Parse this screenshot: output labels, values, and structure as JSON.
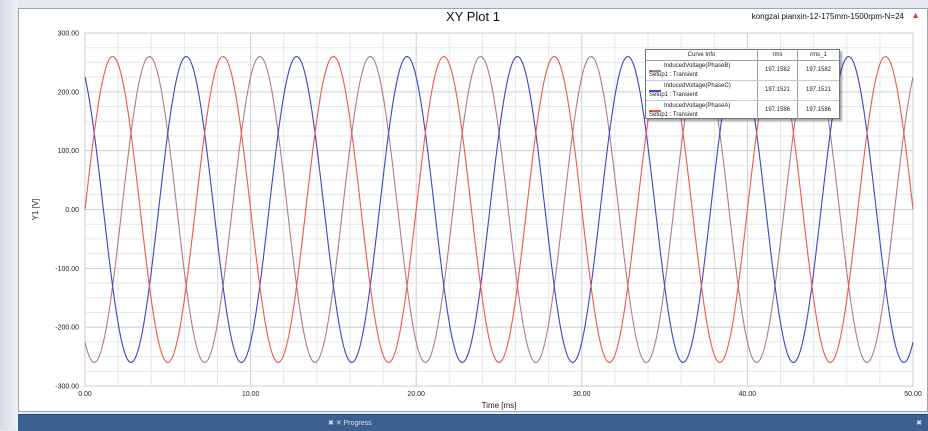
{
  "window": {
    "progress_label": "✖ ✕  Progress",
    "bar_marker": "✖"
  },
  "chart_data": {
    "type": "line",
    "title": "XY Plot 1",
    "subtitle": "kongzai pianxin-12-175mm-1500rpm-N=24",
    "title_marker": "▲",
    "xlabel": "Time [ms]",
    "ylabel": "Y1 [V]",
    "xlim": [
      0,
      50
    ],
    "ylim": [
      -300,
      300
    ],
    "x_ticks": [
      0,
      10,
      20,
      30,
      40,
      50
    ],
    "x_tick_labels": [
      "0.00",
      "10.00",
      "20.00",
      "30.00",
      "40.00",
      "50.00"
    ],
    "y_ticks": [
      300,
      200,
      100,
      0,
      -100,
      -200,
      -300
    ],
    "y_tick_labels": [
      "300.00",
      "200.00",
      "100.00",
      "0.00",
      "-100.00",
      "-200.00",
      "-300.00"
    ],
    "grid": true,
    "legend_position": "top-right",
    "waveform": {
      "amplitude": 260,
      "period_ms": 6.667
    },
    "series": [
      {
        "name": "InducedVoltage(PhaseB)",
        "setup": "Setup1 : Transient",
        "phase_deg": 120,
        "color": "#b07a8c",
        "rms": "197.1582",
        "rms_1": "197.1582"
      },
      {
        "name": "InducedVoltage(PhaseC)",
        "setup": "Setup1 : Transient",
        "phase_deg": 240,
        "color": "#3b46c4",
        "rms": "197.1521",
        "rms_1": "197.1521"
      },
      {
        "name": "InducedVoltage(PhaseA)",
        "setup": "Setup1 : Transient",
        "phase_deg": 0,
        "color": "#f0574a",
        "rms": "197.1586",
        "rms_1": "197.1586"
      }
    ],
    "legend_columns": {
      "curve": "Curve Info",
      "rms": "rms",
      "rms_1": "rms_1"
    }
  }
}
